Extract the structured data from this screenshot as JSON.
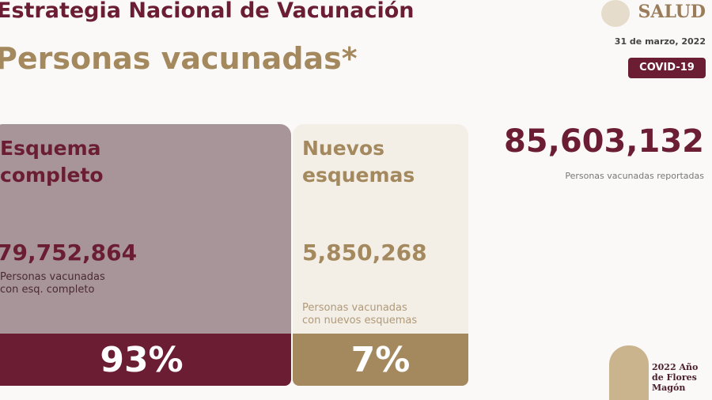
{
  "header": {
    "title": "Estrategia Nacional de Vacunación",
    "subtitle": "Personas vacunadas*",
    "logo_text": "SALUD",
    "date": "31 de marzo, 2022",
    "badge": "COVID-19"
  },
  "cards": [
    {
      "heading_1": "Esquema",
      "heading_2": "completo",
      "value": "79,752,864",
      "desc_1": "Personas vacunadas",
      "desc_2": "con esq. completo",
      "percent": "93%"
    },
    {
      "heading_1": "Nuevos",
      "heading_2": "esquemas",
      "value": "5,850,268",
      "desc_1": "Personas vacunadas",
      "desc_2": "con nuevos esquemas",
      "percent": "7%"
    }
  ],
  "total": {
    "value": "85,603,132",
    "label": "Personas vacunadas reportadas"
  },
  "footer": {
    "year_logo": "2022 Año de Flores Magón"
  },
  "colors": {
    "maroon": "#6b1e33",
    "gold": "#a4895f",
    "mauve": "#a8959a",
    "cream": "#f3eee6"
  }
}
